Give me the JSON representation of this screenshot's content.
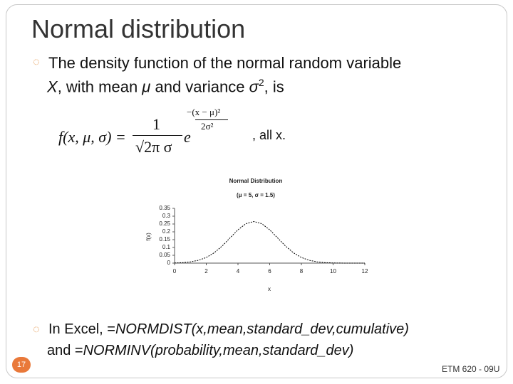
{
  "slide": {
    "title": "Normal distribution",
    "bullet1": [
      "The density function of the normal random variable",
      "X",
      ", with mean ",
      "μ",
      " and variance ",
      "σ",
      "2",
      ", is"
    ],
    "formula": {
      "lhs": "f(x, μ, σ) =",
      "numerator": "1",
      "denominator": "√2π σ",
      "base": "e",
      "exp_numerator": "−(x − μ)²",
      "exp_denominator": "2σ²",
      "tail": ", all x."
    },
    "bullet2": [
      "In Excel, =",
      "NORMDIST(x,mean,standard_dev,cumulative)",
      "and =",
      "NORMINV(probability,mean,standard_dev)"
    ],
    "page_number": "17",
    "footer": "ETM 620 - 09U"
  },
  "chart_data": {
    "type": "line",
    "title": "Normal Distribution",
    "subtitle": "(μ = 5, σ = 1.5)",
    "x_label": "x",
    "y_label": "f(x)",
    "x": [
      0,
      0.5,
      1,
      1.5,
      2,
      2.5,
      3,
      3.5,
      4,
      4.5,
      5,
      5.5,
      6,
      6.5,
      7,
      7.5,
      8,
      8.5,
      9,
      9.5,
      10,
      10.5,
      11,
      11.5,
      12
    ],
    "values": [
      0.001,
      0.003,
      0.008,
      0.018,
      0.036,
      0.066,
      0.109,
      0.161,
      0.213,
      0.252,
      0.266,
      0.252,
      0.213,
      0.161,
      0.109,
      0.066,
      0.036,
      0.018,
      0.008,
      0.003,
      0.001,
      0.0003,
      0.0001,
      0,
      0
    ],
    "color": "#000000",
    "xlim": [
      0,
      12
    ],
    "xticks": [
      0,
      2,
      4,
      6,
      8,
      10,
      12
    ],
    "ylim": [
      0,
      0.35
    ],
    "yticks": [
      0,
      0.05,
      0.1,
      0.15,
      0.2,
      0.25,
      0.3,
      0.35
    ]
  }
}
